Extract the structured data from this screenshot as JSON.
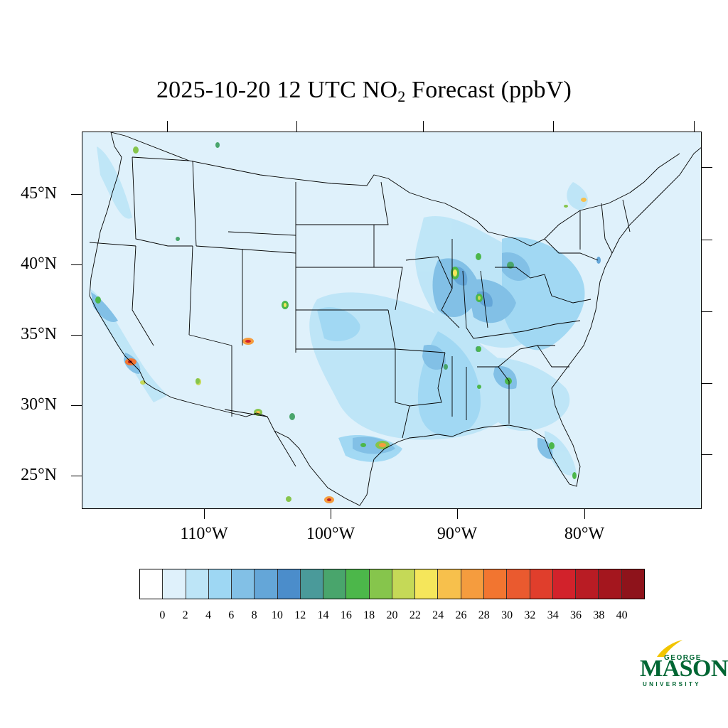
{
  "title": {
    "prefix": "2025-10-20 12 UTC NO",
    "subscript": "2",
    "suffix": " Forecast (ppbV)"
  },
  "map": {
    "region": "Contiguous United States",
    "variable": "NO2",
    "units": "ppbV",
    "background_color": "#dff1fb",
    "lat_labels": [
      "45°N",
      "40°N",
      "35°N",
      "30°N",
      "25°N"
    ],
    "lon_labels": [
      "110°W",
      "100°W",
      "90°W",
      "80°W"
    ]
  },
  "colorbar": {
    "levels": [
      "0",
      "2",
      "4",
      "6",
      "8",
      "10",
      "12",
      "14",
      "16",
      "18",
      "20",
      "22",
      "24",
      "26",
      "28",
      "30",
      "32",
      "34",
      "36",
      "38",
      "40"
    ],
    "colors": [
      "#ffffff",
      "#dff1fb",
      "#bde5f7",
      "#9ed7f3",
      "#82c0e6",
      "#64a6d8",
      "#4b8dcb",
      "#4a9a9a",
      "#49a56c",
      "#4cb74a",
      "#86c54c",
      "#c5d957",
      "#f5e65b",
      "#f7c04c",
      "#f59c3e",
      "#f27530",
      "#ea5a2f",
      "#e03e2c",
      "#d2222b",
      "#b91c24",
      "#a4161e",
      "#8e131b"
    ]
  },
  "logo": {
    "line1": "GEORGE",
    "line2": "MASON",
    "line3": "UNIVERSITY",
    "color": "#006633",
    "accent": "#f2c500"
  }
}
